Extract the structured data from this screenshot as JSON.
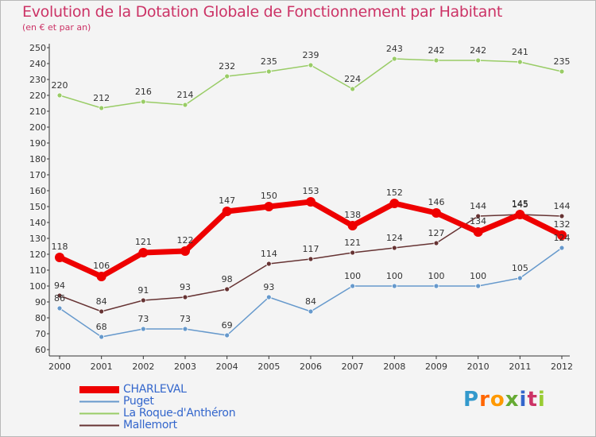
{
  "chart_data": {
    "type": "line",
    "title": "Evolution de la Dotation Globale de Fonctionnement par Habitant",
    "subtitle": "(en € et par an)",
    "x": [
      "2000",
      "2001",
      "2002",
      "2003",
      "2004",
      "2005",
      "2006",
      "2007",
      "2008",
      "2009",
      "2010",
      "2011",
      "2012"
    ],
    "ylim": [
      60,
      250
    ],
    "ystep": 10,
    "grid": false,
    "series": [
      {
        "name": "CHARLEVAL",
        "color": "#ee0000",
        "values": [
          118,
          106,
          121,
          122,
          147,
          150,
          153,
          138,
          152,
          146,
          134,
          145,
          132
        ],
        "labels": [
          "118",
          "106",
          "121",
          "122",
          "147",
          "150",
          "153",
          "138",
          "152",
          "146",
          "134",
          "145",
          "132"
        ]
      },
      {
        "name": "Puget",
        "color": "#6699cc",
        "values": [
          86,
          68,
          73,
          73,
          69,
          93,
          84,
          100,
          100,
          100,
          100,
          105,
          124
        ],
        "labels": [
          "86",
          "68",
          "73",
          "73",
          "69",
          "93",
          "84",
          "100",
          "100",
          "100",
          "100",
          "105",
          "124"
        ]
      },
      {
        "name": "La Roque-d'Anthéron",
        "color": "#99cc66",
        "values": [
          220,
          212,
          216,
          214,
          232,
          235,
          239,
          224,
          243,
          242,
          242,
          241,
          235
        ],
        "labels": [
          "220",
          "212",
          "216",
          "214",
          "232",
          "235",
          "239",
          "224",
          "243",
          "242",
          "242",
          "241",
          "235"
        ]
      },
      {
        "name": "Mallemort",
        "color": "#663333",
        "values": [
          94,
          84,
          91,
          93,
          98,
          114,
          117,
          121,
          124,
          127,
          144,
          145,
          144
        ],
        "labels": [
          "94",
          "84",
          "91",
          "93",
          "98",
          "114",
          "117",
          "121",
          "124",
          "127",
          "144",
          "145",
          "144"
        ]
      }
    ]
  },
  "logo": {
    "letters": [
      "P",
      "r",
      "o",
      "x",
      "i",
      "t",
      "i"
    ],
    "colors": [
      "#3399cc",
      "#ff6600",
      "#ff9900",
      "#66aa33",
      "#3366cc",
      "#cc3366",
      "#99cc33"
    ]
  }
}
